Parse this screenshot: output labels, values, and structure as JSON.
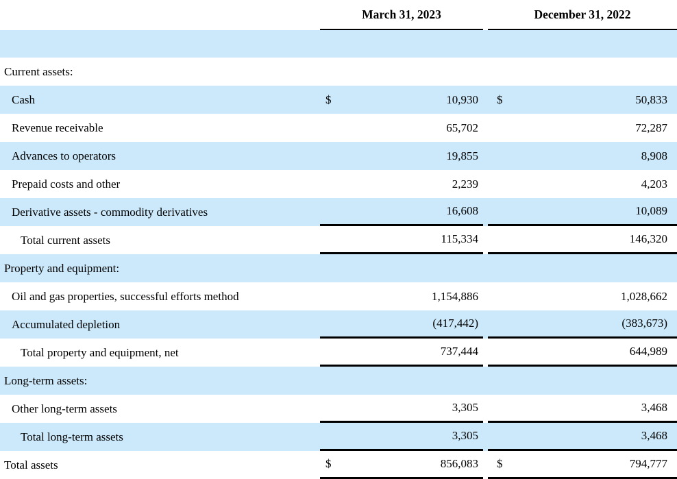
{
  "header": {
    "col1": "March 31, 2023",
    "col2": "December 31, 2022"
  },
  "rows": [
    {
      "name": "spacer-band",
      "type": "spacer",
      "shaded": true
    },
    {
      "name": "current-assets-header",
      "label": "Current assets:",
      "indent": 0,
      "shaded": false,
      "d1": "",
      "v1": "",
      "d2": "",
      "v2": "",
      "line": false
    },
    {
      "name": "cash",
      "label": "Cash",
      "indent": 1,
      "shaded": true,
      "d1": "$",
      "v1": "10,930",
      "d2": "$",
      "v2": "50,833",
      "line": false
    },
    {
      "name": "revenue-receivable",
      "label": "Revenue receivable",
      "indent": 1,
      "shaded": false,
      "d1": "",
      "v1": "65,702",
      "d2": "",
      "v2": "72,287",
      "line": false
    },
    {
      "name": "advances-to-operators",
      "label": "Advances to operators",
      "indent": 1,
      "shaded": true,
      "d1": "",
      "v1": "19,855",
      "d2": "",
      "v2": "8,908",
      "line": false
    },
    {
      "name": "prepaid-costs-and-other",
      "label": "Prepaid costs and other",
      "indent": 1,
      "shaded": false,
      "d1": "",
      "v1": "2,239",
      "d2": "",
      "v2": "4,203",
      "line": false
    },
    {
      "name": "derivative-assets",
      "label": "Derivative assets - commodity derivatives",
      "indent": 1,
      "shaded": true,
      "d1": "",
      "v1": "16,608",
      "d2": "",
      "v2": "10,089",
      "line": true
    },
    {
      "name": "total-current-assets",
      "label": "Total current assets",
      "indent": 2,
      "shaded": false,
      "d1": "",
      "v1": "115,334",
      "d2": "",
      "v2": "146,320",
      "line": true
    },
    {
      "name": "property-and-equipment-header",
      "label": "Property and equipment:",
      "indent": 0,
      "shaded": true,
      "d1": "",
      "v1": "",
      "d2": "",
      "v2": "",
      "line": false
    },
    {
      "name": "oil-and-gas-properties",
      "label": "Oil and gas properties, successful efforts method",
      "indent": 1,
      "shaded": false,
      "d1": "",
      "v1": "1,154,886",
      "d2": "",
      "v2": "1,028,662",
      "line": false
    },
    {
      "name": "accumulated-depletion",
      "label": "Accumulated depletion",
      "indent": 1,
      "shaded": true,
      "d1": "",
      "v1": "(417,442)",
      "d2": "",
      "v2": "(383,673)",
      "line": true
    },
    {
      "name": "total-property-and-equipment-net",
      "label": "Total property and equipment, net",
      "indent": 2,
      "shaded": false,
      "d1": "",
      "v1": "737,444",
      "d2": "",
      "v2": "644,989",
      "line": true
    },
    {
      "name": "long-term-assets-header",
      "label": "Long-term assets:",
      "indent": 0,
      "shaded": true,
      "d1": "",
      "v1": "",
      "d2": "",
      "v2": "",
      "line": false
    },
    {
      "name": "other-long-term-assets",
      "label": "Other long-term assets",
      "indent": 1,
      "shaded": false,
      "d1": "",
      "v1": "3,305",
      "d2": "",
      "v2": "3,468",
      "line": true
    },
    {
      "name": "total-long-term-assets",
      "label": "Total long-term assets",
      "indent": 2,
      "shaded": true,
      "d1": "",
      "v1": "3,305",
      "d2": "",
      "v2": "3,468",
      "line": true
    },
    {
      "name": "total-assets",
      "label": "Total assets",
      "indent": 0,
      "shaded": false,
      "d1": "$",
      "v1": "856,083",
      "d2": "$",
      "v2": "794,777",
      "line": true
    }
  ],
  "colors": {
    "shaded_row": "#cbe9fa",
    "rule_line": "#000000",
    "text": "#000000",
    "background": "#ffffff"
  }
}
